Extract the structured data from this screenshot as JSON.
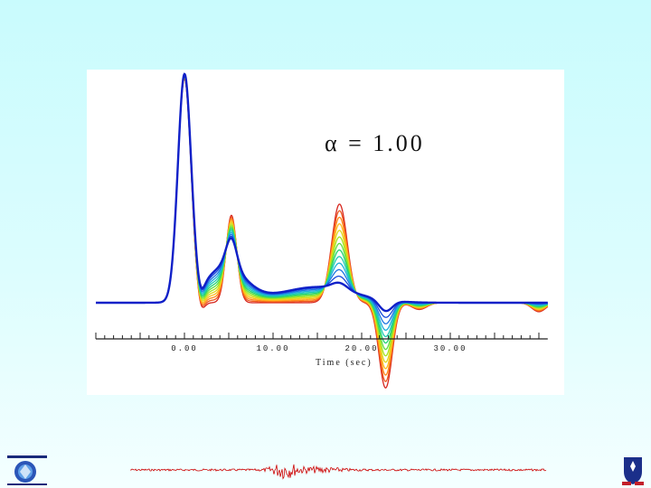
{
  "chart_data": {
    "type": "line",
    "annotation": "α = 1.00",
    "xlabel": "Time (sec)",
    "x_ticks": [
      "0.00",
      "10.00",
      "20.00",
      "30.00"
    ],
    "xlim": [
      -10,
      41
    ],
    "series_count": 13,
    "color_scale": [
      "#d7261e",
      "#ff7a1a",
      "#ffd21a",
      "#9be81e",
      "#22d36a",
      "#1ec8d6",
      "#1a66e6",
      "#1020c8"
    ],
    "series_description": "family of waveforms, same main pulse at t=0, secondary pulses change with parameter (red to blue)",
    "main_pulse": {
      "t": 0.0,
      "amplitude": 1.0
    },
    "secondary_pulse_1": {
      "t": 5.3,
      "amplitude_red": 0.39,
      "amplitude_blue": 0.13
    },
    "secondary_pulse_2": {
      "t": 17.5,
      "amplitude_red": 0.44,
      "amplitude_blue": 0.03
    },
    "negative_pulse": {
      "t": 22.7,
      "amplitude_red": -0.38,
      "amplitude_blue": -0.05
    }
  },
  "seismogram": {
    "color": "#cc0000"
  },
  "logos": {
    "left": "university-logo",
    "right": "university-crest"
  }
}
